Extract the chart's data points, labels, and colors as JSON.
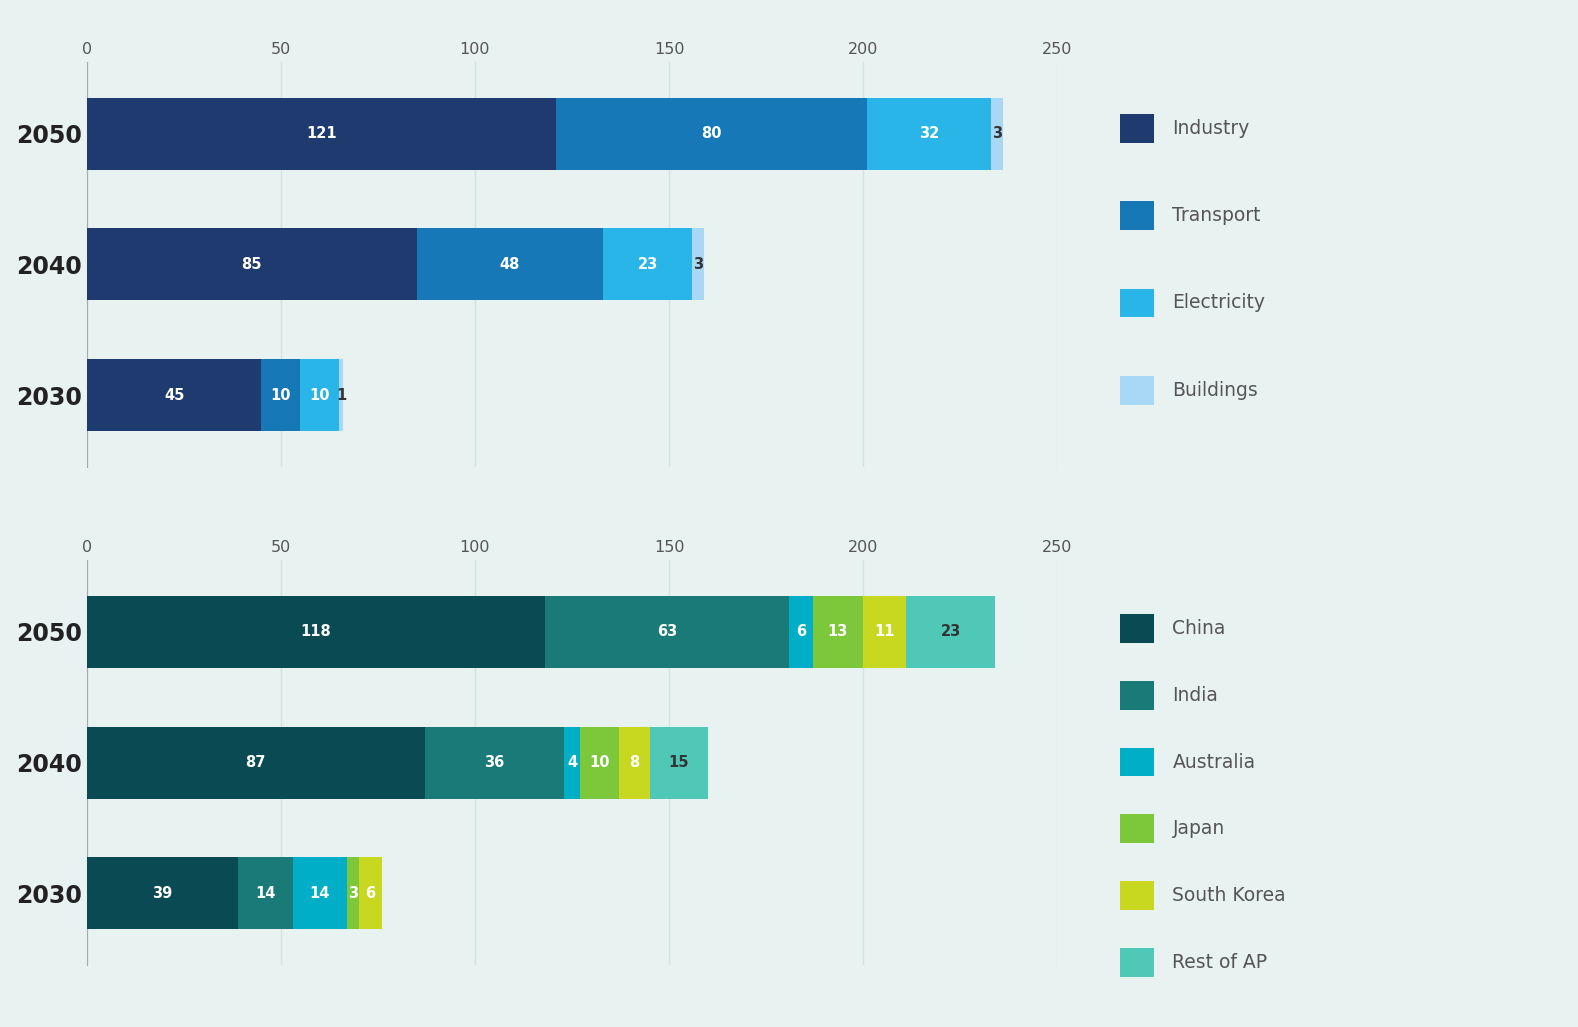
{
  "background_color": "#e8f2f0",
  "chart1": {
    "years": [
      "2050",
      "2040",
      "2030"
    ],
    "categories": [
      "Industry",
      "Transport",
      "Electricity",
      "Buildings"
    ],
    "colors": [
      "#1e3a6e",
      "#1778b8",
      "#29b5e8",
      "#a8d8f5"
    ],
    "values": {
      "2050": [
        121,
        80,
        32,
        3
      ],
      "2040": [
        85,
        48,
        23,
        3
      ],
      "2030": [
        45,
        10,
        10,
        1
      ]
    },
    "label_colors": {
      "2050": [
        "white",
        "white",
        "white",
        "#333333"
      ],
      "2040": [
        "white",
        "white",
        "white",
        "#333333"
      ],
      "2030": [
        "white",
        "white",
        "white",
        "#333333"
      ]
    }
  },
  "chart2": {
    "years": [
      "2050",
      "2040",
      "2030"
    ],
    "categories": [
      "China",
      "India",
      "Australia",
      "Japan",
      "South Korea",
      "Rest of AP"
    ],
    "colors": [
      "#0a4a52",
      "#1a7a78",
      "#00aec8",
      "#7dc83a",
      "#c8d820",
      "#50c8b8"
    ],
    "values": {
      "2050": [
        118,
        63,
        6,
        13,
        11,
        23
      ],
      "2040": [
        87,
        36,
        4,
        10,
        8,
        15
      ],
      "2030": [
        39,
        14,
        14,
        3,
        6,
        0
      ]
    }
  },
  "xlim": [
    0,
    250
  ],
  "xticks": [
    0,
    50,
    100,
    150,
    200,
    250
  ],
  "bar_height": 0.55,
  "grid_color": "#d0e4e0",
  "spine_color": "#aaaaaa"
}
